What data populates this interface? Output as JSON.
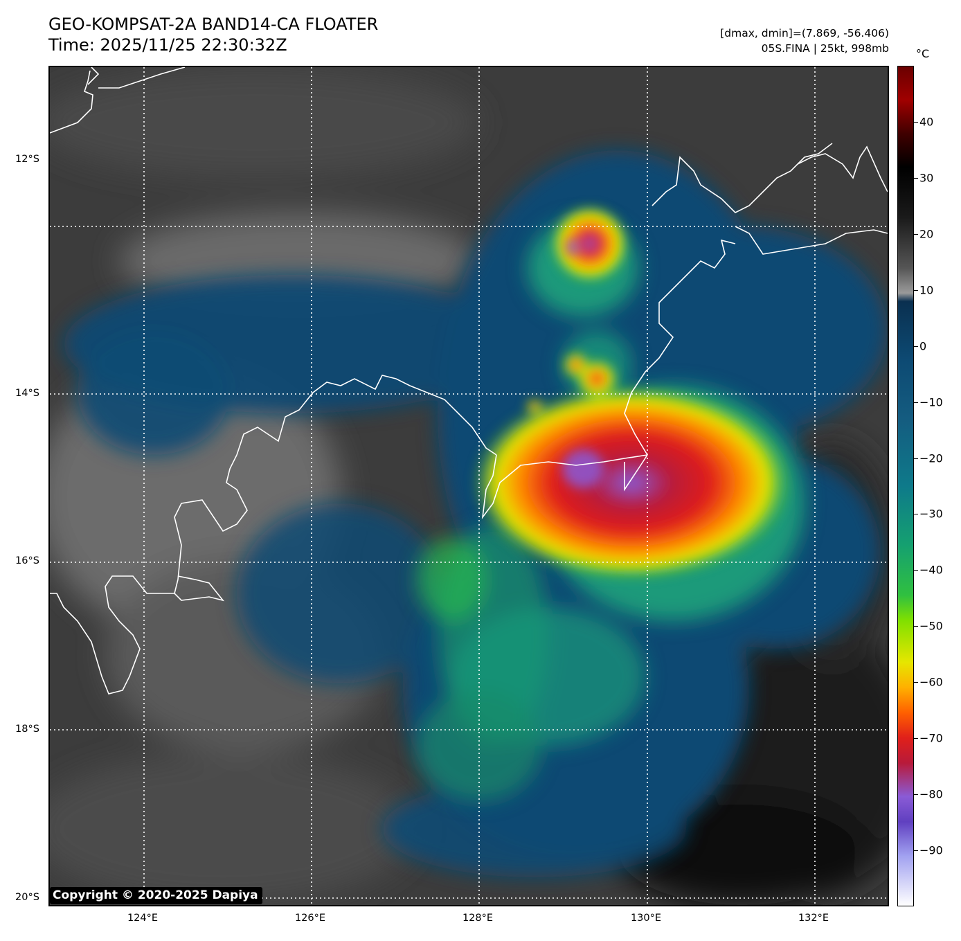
{
  "header": {
    "title_line1": "GEO-KOMPSAT-2A BAND14-CA FLOATER",
    "title_line2": "Time: 2025/11/25 22:30:32Z",
    "stats_line1": "[dmax, dmin]=(7.869, -56.406)",
    "stats_line2": "05S.FINA | 25kt, 998mb"
  },
  "axes": {
    "lat_labels": [
      "12°S",
      "14°S",
      "16°S",
      "18°S",
      "20°S"
    ],
    "lon_labels": [
      "124°E",
      "126°E",
      "128°E",
      "130°E",
      "132°E"
    ]
  },
  "colorbar": {
    "unit": "°C",
    "ticks": [
      "40",
      "30",
      "20",
      "10",
      "0",
      "−10",
      "−20",
      "−30",
      "−40",
      "−50",
      "−60",
      "−70",
      "−80",
      "−90"
    ],
    "range": [
      50,
      -100
    ]
  },
  "copyright": "Copyright © 2020-2025 Dapiya",
  "colors": {
    "cold_core": "#8a5bd6",
    "deep_convection": "#e0201a",
    "cold_tops": "#f0d000",
    "mid_cloud": "#1a9a7a",
    "low_cloud": "#0d4a73",
    "background_gray": "#3a3a3a"
  }
}
